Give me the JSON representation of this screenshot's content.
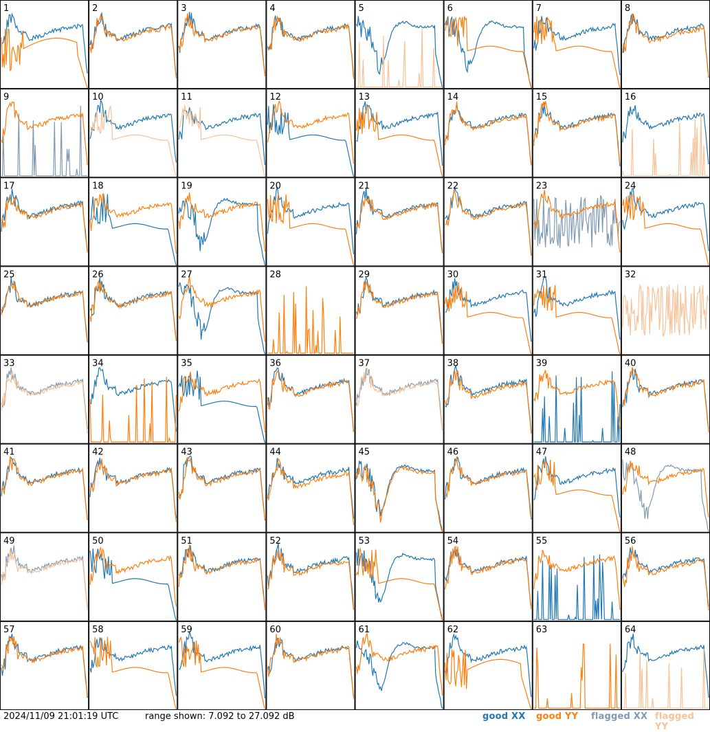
{
  "footer": {
    "timestamp": "2024/11/09 21:01:19 UTC",
    "range": "range shown: 7.092 to 27.092 dB",
    "legend": {
      "good_xx": "good XX",
      "good_yy": "good YY",
      "flagged_xx": "flagged XX",
      "flagged_yy": "flagged YY"
    }
  },
  "colors": {
    "good_xx": "#1f77b4",
    "good_yy": "#ff7f0e",
    "flagged_xx": "#7f9ab2",
    "flagged_yy": "#f7c297"
  },
  "chart_data": {
    "type": "line",
    "range_db": [
      7.092,
      27.092
    ],
    "grid_rows": 8,
    "grid_cols": 8,
    "panels": [
      {
        "label": "1",
        "xx": {
          "s": "A",
          "o": 0.0,
          "f": false
        },
        "yy": {
          "s": "D",
          "o": 0.0,
          "f": false
        }
      },
      {
        "label": "2",
        "xx": {
          "s": "A",
          "o": 0.0,
          "f": false
        },
        "yy": {
          "s": "A",
          "o": 0.5,
          "f": false
        }
      },
      {
        "label": "3",
        "xx": {
          "s": "A",
          "o": 0.0,
          "f": false
        },
        "yy": {
          "s": "A",
          "o": 0.5,
          "f": false
        }
      },
      {
        "label": "4",
        "xx": {
          "s": "A",
          "o": 0.0,
          "f": false
        },
        "yy": {
          "s": "A",
          "o": 0.5,
          "f": false
        }
      },
      {
        "label": "5",
        "xx": {
          "s": "B",
          "o": 0.0,
          "f": false
        },
        "yy": {
          "s": "E",
          "o": 0.0,
          "f": true
        }
      },
      {
        "label": "6",
        "xx": {
          "s": "B",
          "o": 0.0,
          "f": false
        },
        "yy": {
          "s": "C",
          "o": 0.0,
          "f": false
        }
      },
      {
        "label": "7",
        "xx": {
          "s": "A",
          "o": 0.0,
          "f": false
        },
        "yy": {
          "s": "C",
          "o": 0.0,
          "f": false
        }
      },
      {
        "label": "8",
        "xx": {
          "s": "A",
          "o": 0.0,
          "f": false
        },
        "yy": {
          "s": "A",
          "o": 1.0,
          "f": false
        }
      },
      {
        "label": "9",
        "xx": {
          "s": "E",
          "o": 0.0,
          "f": true
        },
        "yy": {
          "s": "A",
          "o": 0.0,
          "f": false
        }
      },
      {
        "label": "10",
        "xx": {
          "s": "A",
          "o": 0.0,
          "f": false
        },
        "yy": {
          "s": "C",
          "o": 0.0,
          "f": true
        }
      },
      {
        "label": "11",
        "xx": {
          "s": "A",
          "o": 0.0,
          "f": false
        },
        "yy": {
          "s": "C",
          "o": 0.0,
          "f": true
        }
      },
      {
        "label": "12",
        "xx": {
          "s": "C",
          "o": 0.0,
          "f": false
        },
        "yy": {
          "s": "A",
          "o": 0.0,
          "f": false
        }
      },
      {
        "label": "13",
        "xx": {
          "s": "A",
          "o": 0.0,
          "f": false
        },
        "yy": {
          "s": "C",
          "o": 0.0,
          "f": false
        }
      },
      {
        "label": "14",
        "xx": {
          "s": "A",
          "o": 0.0,
          "f": false
        },
        "yy": {
          "s": "A",
          "o": 0.5,
          "f": false
        }
      },
      {
        "label": "15",
        "xx": {
          "s": "A",
          "o": 0.0,
          "f": false
        },
        "yy": {
          "s": "A",
          "o": 0.5,
          "f": false
        }
      },
      {
        "label": "16",
        "xx": {
          "s": "A",
          "o": 0.0,
          "f": false
        },
        "yy": {
          "s": "E",
          "o": 0.0,
          "f": true
        }
      },
      {
        "label": "17",
        "xx": {
          "s": "A",
          "o": 0.0,
          "f": false
        },
        "yy": {
          "s": "A",
          "o": 0.5,
          "f": false
        }
      },
      {
        "label": "18",
        "xx": {
          "s": "C",
          "o": 0.0,
          "f": false
        },
        "yy": {
          "s": "A",
          "o": 0.0,
          "f": false
        }
      },
      {
        "label": "19",
        "xx": {
          "s": "B",
          "o": 0.0,
          "f": false
        },
        "yy": {
          "s": "A",
          "o": 0.0,
          "f": false
        }
      },
      {
        "label": "20",
        "xx": {
          "s": "A",
          "o": 0.0,
          "f": false
        },
        "yy": {
          "s": "C",
          "o": 0.0,
          "f": false
        }
      },
      {
        "label": "21",
        "xx": {
          "s": "A",
          "o": 0.0,
          "f": false
        },
        "yy": {
          "s": "A",
          "o": 0.5,
          "f": false
        }
      },
      {
        "label": "22",
        "xx": {
          "s": "A",
          "o": 0.0,
          "f": false
        },
        "yy": {
          "s": "A",
          "o": 0.5,
          "f": false
        }
      },
      {
        "label": "23",
        "xx": {
          "s": "F",
          "o": 0.0,
          "f": true
        },
        "yy": {
          "s": "A",
          "o": 0.0,
          "f": false
        }
      },
      {
        "label": "24",
        "xx": {
          "s": "A",
          "o": 0.0,
          "f": false
        },
        "yy": {
          "s": "C",
          "o": 0.0,
          "f": false
        }
      },
      {
        "label": "25",
        "xx": {
          "s": "A",
          "o": 0.0,
          "f": false
        },
        "yy": {
          "s": "A",
          "o": 0.3,
          "f": false
        }
      },
      {
        "label": "26",
        "xx": {
          "s": "A",
          "o": 0.0,
          "f": false
        },
        "yy": {
          "s": "A",
          "o": 0.5,
          "f": false
        }
      },
      {
        "label": "27",
        "xx": {
          "s": "B",
          "o": 0.0,
          "f": false
        },
        "yy": {
          "s": "A",
          "o": 0.0,
          "f": false
        }
      },
      {
        "label": "28",
        "xx": {
          "s": "N",
          "o": 0.0,
          "f": false
        },
        "yy": {
          "s": "E",
          "o": 0.0,
          "f": false
        }
      },
      {
        "label": "29",
        "xx": {
          "s": "A",
          "o": 0.0,
          "f": false
        },
        "yy": {
          "s": "A",
          "o": 0.5,
          "f": false
        }
      },
      {
        "label": "30",
        "xx": {
          "s": "A",
          "o": 0.0,
          "f": false
        },
        "yy": {
          "s": "C",
          "o": 0.0,
          "f": false
        }
      },
      {
        "label": "31",
        "xx": {
          "s": "A",
          "o": 0.0,
          "f": false
        },
        "yy": {
          "s": "C",
          "o": 0.0,
          "f": false
        }
      },
      {
        "label": "32",
        "xx": {
          "s": "N",
          "o": 0.0,
          "f": false
        },
        "yy": {
          "s": "F",
          "o": 0.0,
          "f": true
        }
      },
      {
        "label": "33",
        "xx": {
          "s": "A",
          "o": 0.0,
          "f": true
        },
        "yy": {
          "s": "A",
          "o": 0.5,
          "f": true
        }
      },
      {
        "label": "34",
        "xx": {
          "s": "A",
          "o": 0.0,
          "f": false
        },
        "yy": {
          "s": "E",
          "o": 0.0,
          "f": false
        }
      },
      {
        "label": "35",
        "xx": {
          "s": "C",
          "o": 0.0,
          "f": false
        },
        "yy": {
          "s": "A",
          "o": 0.0,
          "f": false
        }
      },
      {
        "label": "36",
        "xx": {
          "s": "A",
          "o": 0.0,
          "f": false
        },
        "yy": {
          "s": "A",
          "o": 0.5,
          "f": false
        }
      },
      {
        "label": "37",
        "xx": {
          "s": "A",
          "o": 0.0,
          "f": true
        },
        "yy": {
          "s": "A",
          "o": 0.5,
          "f": true
        }
      },
      {
        "label": "38",
        "xx": {
          "s": "A",
          "o": 0.0,
          "f": false
        },
        "yy": {
          "s": "A",
          "o": 1.0,
          "f": false
        }
      },
      {
        "label": "39",
        "xx": {
          "s": "E",
          "o": 0.0,
          "f": false
        },
        "yy": {
          "s": "A",
          "o": 0.0,
          "f": false
        }
      },
      {
        "label": "40",
        "xx": {
          "s": "A",
          "o": 0.0,
          "f": false
        },
        "yy": {
          "s": "A",
          "o": 0.5,
          "f": false
        }
      },
      {
        "label": "41",
        "xx": {
          "s": "A",
          "o": 0.0,
          "f": false
        },
        "yy": {
          "s": "A",
          "o": 0.5,
          "f": false
        }
      },
      {
        "label": "42",
        "xx": {
          "s": "A",
          "o": 0.0,
          "f": false
        },
        "yy": {
          "s": "A",
          "o": 0.5,
          "f": false
        }
      },
      {
        "label": "43",
        "xx": {
          "s": "A",
          "o": 0.0,
          "f": false
        },
        "yy": {
          "s": "A",
          "o": 0.5,
          "f": false
        }
      },
      {
        "label": "44",
        "xx": {
          "s": "A",
          "o": 0.0,
          "f": false
        },
        "yy": {
          "s": "A",
          "o": 1.5,
          "f": false
        }
      },
      {
        "label": "45",
        "xx": {
          "s": "B",
          "o": 0.0,
          "f": false
        },
        "yy": {
          "s": "B",
          "o": 0.8,
          "f": false
        }
      },
      {
        "label": "46",
        "xx": {
          "s": "A",
          "o": 0.0,
          "f": false
        },
        "yy": {
          "s": "A",
          "o": 0.5,
          "f": false
        }
      },
      {
        "label": "47",
        "xx": {
          "s": "A",
          "o": 0.0,
          "f": false
        },
        "yy": {
          "s": "C",
          "o": 0.0,
          "f": false
        }
      },
      {
        "label": "48",
        "xx": {
          "s": "B",
          "o": 0.0,
          "f": true
        },
        "yy": {
          "s": "A",
          "o": 0.0,
          "f": false
        }
      },
      {
        "label": "49",
        "xx": {
          "s": "A",
          "o": 0.0,
          "f": true
        },
        "yy": {
          "s": "A",
          "o": 0.5,
          "f": true
        }
      },
      {
        "label": "50",
        "xx": {
          "s": "C",
          "o": 0.0,
          "f": false
        },
        "yy": {
          "s": "A",
          "o": 0.0,
          "f": false
        }
      },
      {
        "label": "51",
        "xx": {
          "s": "A",
          "o": 0.0,
          "f": false
        },
        "yy": {
          "s": "A",
          "o": 0.5,
          "f": false
        }
      },
      {
        "label": "52",
        "xx": {
          "s": "A",
          "o": 0.0,
          "f": false
        },
        "yy": {
          "s": "A",
          "o": 1.0,
          "f": false
        }
      },
      {
        "label": "53",
        "xx": {
          "s": "B",
          "o": 0.0,
          "f": false
        },
        "yy": {
          "s": "C",
          "o": 0.0,
          "f": false
        }
      },
      {
        "label": "54",
        "xx": {
          "s": "A",
          "o": 0.0,
          "f": false
        },
        "yy": {
          "s": "A",
          "o": 0.5,
          "f": false
        }
      },
      {
        "label": "55",
        "xx": {
          "s": "E",
          "o": 0.0,
          "f": false
        },
        "yy": {
          "s": "A",
          "o": 0.0,
          "f": false
        }
      },
      {
        "label": "56",
        "xx": {
          "s": "A",
          "o": 0.0,
          "f": false
        },
        "yy": {
          "s": "A",
          "o": 1.0,
          "f": false
        }
      },
      {
        "label": "57",
        "xx": {
          "s": "A",
          "o": 0.0,
          "f": false
        },
        "yy": {
          "s": "A",
          "o": 0.5,
          "f": false
        }
      },
      {
        "label": "58",
        "xx": {
          "s": "A",
          "o": 0.0,
          "f": false
        },
        "yy": {
          "s": "C",
          "o": 0.0,
          "f": false
        }
      },
      {
        "label": "59",
        "xx": {
          "s": "A",
          "o": 0.0,
          "f": false
        },
        "yy": {
          "s": "C",
          "o": 0.0,
          "f": false
        }
      },
      {
        "label": "60",
        "xx": {
          "s": "A",
          "o": 0.0,
          "f": false
        },
        "yy": {
          "s": "A",
          "o": 0.5,
          "f": false
        }
      },
      {
        "label": "61",
        "xx": {
          "s": "B",
          "o": 0.0,
          "f": false
        },
        "yy": {
          "s": "A",
          "o": 0.0,
          "f": false
        }
      },
      {
        "label": "62",
        "xx": {
          "s": "A",
          "o": 0.0,
          "f": false
        },
        "yy": {
          "s": "D",
          "o": 0.0,
          "f": false
        }
      },
      {
        "label": "63",
        "xx": {
          "s": "N",
          "o": 0.0,
          "f": false
        },
        "yy": {
          "s": "E",
          "o": 0.0,
          "f": false
        }
      },
      {
        "label": "64",
        "xx": {
          "s": "A",
          "o": 0.0,
          "f": false
        },
        "yy": {
          "s": "E",
          "o": 0.0,
          "f": true
        }
      }
    ]
  }
}
